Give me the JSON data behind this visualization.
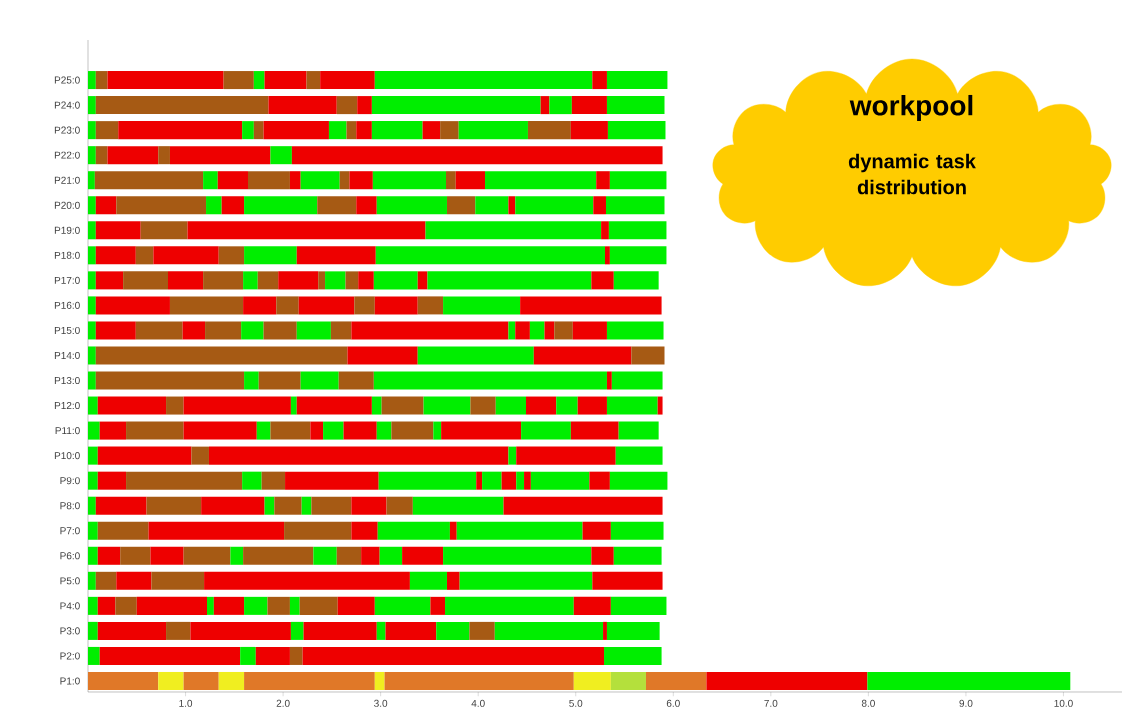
{
  "chart_data": {
    "type": "bar",
    "orientation": "horizontal",
    "stacked": true,
    "categories": [
      "P25:0",
      "P24:0",
      "P23:0",
      "P22:0",
      "P21:0",
      "P20:0",
      "P19:0",
      "P18:0",
      "P17:0",
      "P16:0",
      "P15:0",
      "P14:0",
      "P13:0",
      "P12:0",
      "P11:0",
      "P10:0",
      "P9:0",
      "P8:0",
      "P7:0",
      "P6:0",
      "P5:0",
      "P4:0",
      "P3:0",
      "P2:0",
      "P1:0"
    ],
    "xlim": [
      0,
      10.6
    ],
    "xticks": [
      {
        "value": 1,
        "label": "1.0"
      },
      {
        "value": 2,
        "label": "2.0"
      },
      {
        "value": 3,
        "label": "3.0"
      },
      {
        "value": 4,
        "label": "4.0"
      },
      {
        "value": 5,
        "label": "5.0"
      },
      {
        "value": 6,
        "label": "6.0"
      },
      {
        "value": 7,
        "label": "7.0"
      },
      {
        "value": 8,
        "label": "8.0"
      },
      {
        "value": 9,
        "label": "9.0"
      },
      {
        "value": 10,
        "label": "10.0"
      }
    ],
    "annotations": [
      "workpool",
      "dynamic task distribution"
    ],
    "series": [
      {
        "values": [
          0.08,
          0.08,
          0.08,
          0.08,
          0.07,
          0.08,
          0.08,
          0.08,
          0.08,
          0.08,
          0.08,
          0.08,
          0.08,
          0.1,
          0.12,
          0.1,
          0.1,
          0.08,
          0.1,
          0.1,
          0.08,
          0.1,
          0.1,
          0.12,
          0.72
        ],
        "colors": [
          "#00ee00",
          "#00ee00",
          "#00ee00",
          "#00ee00",
          "#00ee00",
          "#00ee00",
          "#00ee00",
          "#00ee00",
          "#00ee00",
          "#00ee00",
          "#00ee00",
          "#00ee00",
          "#00ee00",
          "#00ee00",
          "#00ee00",
          "#00ee00",
          "#00ee00",
          "#00ee00",
          "#00ee00",
          "#00ee00",
          "#00ee00",
          "#00ee00",
          "#00ee00",
          "#00ee00",
          "#e07828"
        ]
      },
      {
        "values": [
          0.12,
          1.77,
          0.23,
          0.12,
          1.11,
          0.21,
          0.46,
          0.41,
          0.28,
          0.76,
          0.41,
          2.58,
          1.52,
          0.7,
          0.27,
          0.96,
          0.29,
          0.52,
          0.52,
          0.23,
          0.21,
          0.18,
          0.7,
          1.44,
          0.26
        ],
        "colors": [
          "#a65a14",
          "#a65a14",
          "#a65a14",
          "#a65a14",
          "#a65a14",
          "#ee0000",
          "#ee0000",
          "#ee0000",
          "#ee0000",
          "#ee0000",
          "#ee0000",
          "#a65a14",
          "#a65a14",
          "#ee0000",
          "#ee0000",
          "#ee0000",
          "#ee0000",
          "#ee0000",
          "#a65a14",
          "#ee0000",
          "#a65a14",
          "#ee0000",
          "#ee0000",
          "#ee0000",
          "#f0ee20"
        ]
      },
      {
        "values": [
          1.19,
          0.7,
          1.27,
          0.52,
          0.15,
          0.92,
          0.48,
          0.18,
          0.46,
          0.75,
          0.48,
          0.72,
          0.15,
          0.18,
          0.59,
          0.18,
          1.19,
          0.56,
          1.39,
          0.31,
          0.36,
          0.22,
          0.25,
          0.16,
          0.36
        ],
        "colors": [
          "#ee0000",
          "#ee0000",
          "#ee0000",
          "#ee0000",
          "#00ee00",
          "#a65a14",
          "#a65a14",
          "#a65a14",
          "#a65a14",
          "#a65a14",
          "#a65a14",
          "#ee0000",
          "#00ee00",
          "#a65a14",
          "#a65a14",
          "#a65a14",
          "#a65a14",
          "#a65a14",
          "#ee0000",
          "#a65a14",
          "#ee0000",
          "#a65a14",
          "#a65a14",
          "#00ee00",
          "#e07828"
        ]
      },
      {
        "values": [
          0.31,
          0.21,
          0.12,
          0.12,
          0.31,
          0.16,
          2.44,
          0.67,
          0.36,
          0.34,
          0.23,
          1.19,
          0.43,
          1.1,
          0.75,
          3.07,
          0.2,
          0.65,
          0.69,
          0.34,
          0.54,
          0.72,
          1.03,
          0.35,
          0.26
        ],
        "colors": [
          "#a65a14",
          "#a65a14",
          "#00ee00",
          "#a65a14",
          "#ee0000",
          "#00ee00",
          "#ee0000",
          "#ee0000",
          "#ee0000",
          "#ee0000",
          "#ee0000",
          "#00ee00",
          "#a65a14",
          "#ee0000",
          "#ee0000",
          "#ee0000",
          "#00ee00",
          "#ee0000",
          "#a65a14",
          "#ee0000",
          "#a65a14",
          "#ee0000",
          "#ee0000",
          "#ee0000",
          "#f0ee20"
        ]
      },
      {
        "values": [
          0.11,
          0.15,
          0.1,
          1.03,
          0.43,
          0.23,
          1.8,
          0.26,
          0.41,
          0.23,
          0.37,
          1.0,
          0.39,
          0.06,
          0.14,
          0.08,
          0.24,
          0.1,
          0.27,
          0.48,
          2.11,
          0.07,
          0.13,
          0.13,
          1.34
        ],
        "colors": [
          "#00ee00",
          "#ee0000",
          "#a65a14",
          "#ee0000",
          "#a65a14",
          "#ee0000",
          "#00ee00",
          "#a65a14",
          "#a65a14",
          "#a65a14",
          "#a65a14",
          "#ee0000",
          "#00ee00",
          "#00ee00",
          "#00ee00",
          "#00ee00",
          "#a65a14",
          "#00ee00",
          "#ee0000",
          "#a65a14",
          "#ee0000",
          "#00ee00",
          "#00ee00",
          "#a65a14",
          "#e07828"
        ]
      },
      {
        "values": [
          0.43,
          1.73,
          0.67,
          0.22,
          0.11,
          0.75,
          0.08,
          0.54,
          0.15,
          0.57,
          0.23,
          0.34,
          0.36,
          0.77,
          0.41,
          1.02,
          0.96,
          0.28,
          0.74,
          0.13,
          0.38,
          0.31,
          0.75,
          3.09,
          0.1
        ],
        "colors": [
          "#ee0000",
          "#00ee00",
          "#ee0000",
          "#00ee00",
          "#ee0000",
          "#00ee00",
          "#ee0000",
          "#00ee00",
          "#00ee00",
          "#ee0000",
          "#00ee00",
          "#a65a14",
          "#a65a14",
          "#ee0000",
          "#a65a14",
          "#ee0000",
          "#ee0000",
          "#a65a14",
          "#00ee00",
          "#00ee00",
          "#00ee00",
          "#ee0000",
          "#ee0000",
          "#ee0000",
          "#f0ee20"
        ]
      },
      {
        "values": [
          0.14,
          0.09,
          0.18,
          3.8,
          0.4,
          0.4,
          0.59,
          0.81,
          0.21,
          0.21,
          0.34,
          null,
          2.39,
          0.1,
          0.13,
          0.48,
          1.0,
          0.1,
          0.07,
          0.72,
          0.13,
          0.24,
          0.09,
          0.59,
          1.94
        ],
        "colors": [
          "#a65a14",
          "#ee0000",
          "#00ee00",
          "#ee0000",
          "#00ee00",
          "#a65a14",
          "#00ee00",
          "#ee0000",
          "#a65a14",
          "#a65a14",
          "#a65a14",
          null,
          "#00ee00",
          "#00ee00",
          "#ee0000",
          "#00ee00",
          "#00ee00",
          "#00ee00",
          "#ee0000",
          "#a65a14",
          "#ee0000",
          "#00ee00",
          "#00ee00",
          "#00ee00",
          "#e07828"
        ]
      },
      {
        "values": [
          0.56,
          0.23,
          0.1,
          null,
          0.1,
          0.21,
          null,
          2.35,
          0.41,
          0.44,
          0.35,
          null,
          0.05,
          0.43,
          0.21,
          null,
          0.06,
          0.41,
          1.29,
          0.24,
          1.36,
          0.23,
          0.52,
          null,
          0.38
        ],
        "colors": [
          "#ee0000",
          "#00ee00",
          "#a65a14",
          null,
          "#a65a14",
          "#ee0000",
          null,
          "#00ee00",
          "#ee0000",
          "#ee0000",
          "#00ee00",
          null,
          "#ee0000",
          "#a65a14",
          "#00ee00",
          null,
          "#ee0000",
          "#a65a14",
          "#00ee00",
          "#00ee00",
          "#00ee00",
          "#a65a14",
          "#ee0000",
          null,
          "#f0ee20"
        ]
      },
      {
        "values": [
          2.23,
          0.36,
          0.16,
          null,
          0.24,
          0.72,
          null,
          0.05,
          0.07,
          0.26,
          0.21,
          null,
          0.52,
          0.48,
          0.34,
          null,
          0.2,
          0.36,
          0.29,
          0.25,
          0.72,
          0.1,
          0.34,
          null,
          0.36
        ],
        "colors": [
          "#00ee00",
          "#ee0000",
          "#ee0000",
          null,
          "#ee0000",
          "#00ee00",
          null,
          "#ee0000",
          "#a65a14",
          "#a65a14",
          "#a65a14",
          null,
          "#00ee00",
          "#00ee00",
          "#ee0000",
          null,
          "#00ee00",
          "#ee0000",
          "#ee0000",
          "#a65a14",
          "#ee0000",
          "#00ee00",
          "#00ee00",
          null,
          "#b4e03c"
        ]
      },
      {
        "values": [
          0.15,
          0.59,
          0.52,
          null,
          0.75,
          0.29,
          null,
          0.58,
          0.21,
          0.79,
          1.61,
          null,
          null,
          0.26,
          0.15,
          null,
          0.15,
          0.27,
          0.54,
          0.19,
          null,
          0.39,
          0.26,
          null,
          0.62
        ],
        "colors": [
          "#ee0000",
          "#00ee00",
          "#00ee00",
          null,
          "#00ee00",
          "#a65a14",
          null,
          "#00ee00",
          "#00ee00",
          "#00ee00",
          "#ee0000",
          null,
          null,
          "#a65a14",
          "#00ee00",
          null,
          "#ee0000",
          "#a65a14",
          "#00ee00",
          "#ee0000",
          null,
          "#a65a14",
          "#a65a14",
          null,
          "#e07828"
        ]
      },
      {
        "values": [
          0.62,
          null,
          0.18,
          null,
          0.1,
          0.34,
          null,
          null,
          0.13,
          1.45,
          0.07,
          null,
          null,
          0.31,
          0.43,
          null,
          0.08,
          0.93,
          null,
          0.23,
          null,
          0.38,
          1.11,
          null,
          1.65
        ],
        "colors": [
          "#00ee00",
          null,
          "#ee0000",
          null,
          "#a65a14",
          "#00ee00",
          null,
          null,
          "#a65a14",
          "#ee0000",
          "#00ee00",
          null,
          null,
          "#00ee00",
          "#a65a14",
          null,
          "#00ee00",
          "#00ee00",
          null,
          "#00ee00",
          null,
          "#ee0000",
          "#00ee00",
          null,
          "#ee0000"
        ]
      },
      {
        "values": [
          null,
          null,
          0.19,
          null,
          0.3,
          0.07,
          null,
          null,
          0.16,
          null,
          0.15,
          null,
          null,
          0.31,
          0.08,
          null,
          0.07,
          1.63,
          null,
          0.42,
          null,
          0.57,
          0.04,
          null,
          2.08
        ],
        "colors": [
          null,
          null,
          "#a65a14",
          null,
          "#ee0000",
          "#ee0000",
          null,
          null,
          "#ee0000",
          null,
          "#ee0000",
          null,
          null,
          "#ee0000",
          "#00ee00",
          null,
          "#ee0000",
          "#ee0000",
          null,
          "#ee0000",
          null,
          "#00ee00",
          "#ee0000",
          null,
          "#00ee00"
        ]
      },
      {
        "values": [
          null,
          null,
          0.71,
          null,
          1.14,
          0.8,
          null,
          null,
          0.45,
          null,
          0.15,
          null,
          null,
          0.22,
          0.82,
          null,
          0.6,
          null,
          null,
          1.52,
          null,
          0.15,
          0.54,
          null,
          null
        ],
        "colors": [
          null,
          null,
          "#00ee00",
          null,
          "#00ee00",
          "#00ee00",
          null,
          null,
          "#00ee00",
          null,
          "#00ee00",
          null,
          null,
          "#00ee00",
          "#ee0000",
          null,
          "#00ee00",
          null,
          null,
          "#00ee00",
          null,
          "#ee0000",
          "#00ee00",
          null,
          null
        ]
      },
      {
        "values": [
          null,
          null,
          0.44,
          null,
          0.14,
          0.13,
          null,
          null,
          0.1,
          null,
          0.1,
          null,
          null,
          0.3,
          0.51,
          null,
          0.21,
          null,
          null,
          0.23,
          null,
          1.32,
          null,
          null,
          null
        ],
        "colors": [
          null,
          null,
          "#a65a14",
          null,
          "#ee0000",
          "#ee0000",
          null,
          null,
          "#ee0000",
          null,
          "#ee0000",
          null,
          null,
          "#ee0000",
          "#00ee00",
          null,
          "#ee0000",
          null,
          null,
          "#ee0000",
          null,
          "#00ee00",
          null,
          null,
          null
        ]
      },
      {
        "values": [
          null,
          null,
          0.38,
          null,
          0.58,
          0.6,
          null,
          null,
          1.68,
          null,
          0.19,
          null,
          null,
          0.52,
          0.49,
          null,
          0.59,
          null,
          null,
          0.49,
          null,
          0.38,
          null,
          null,
          null
        ],
        "colors": [
          null,
          null,
          "#ee0000",
          null,
          "#00ee00",
          "#00ee00",
          null,
          null,
          "#00ee00",
          null,
          "#a65a14",
          null,
          null,
          "#00ee00",
          "#ee0000",
          null,
          "#00ee00",
          null,
          null,
          "#00ee00",
          null,
          "#ee0000",
          null,
          null,
          null
        ]
      },
      {
        "values": [
          null,
          null,
          0.59,
          null,
          null,
          null,
          null,
          null,
          0.23,
          null,
          0.35,
          null,
          null,
          0.05,
          0.41,
          null,
          null,
          null,
          null,
          null,
          null,
          0.57,
          null,
          null,
          null
        ],
        "colors": [
          null,
          null,
          "#00ee00",
          null,
          null,
          null,
          null,
          null,
          "#ee0000",
          null,
          "#ee0000",
          null,
          null,
          "#ee0000",
          "#00ee00",
          null,
          null,
          null,
          null,
          null,
          null,
          "#00ee00",
          null,
          null,
          null
        ]
      },
      {
        "values": [
          null,
          null,
          null,
          null,
          null,
          null,
          null,
          null,
          0.46,
          null,
          0.58,
          null,
          null,
          null,
          null,
          null,
          null,
          null,
          null,
          null,
          null,
          null,
          null,
          null,
          null
        ],
        "colors": [
          null,
          null,
          null,
          null,
          null,
          null,
          null,
          null,
          "#00ee00",
          null,
          "#00ee00",
          null,
          null,
          null,
          null,
          null,
          null,
          null,
          null,
          null,
          null,
          null,
          null,
          null,
          null
        ]
      }
    ]
  }
}
